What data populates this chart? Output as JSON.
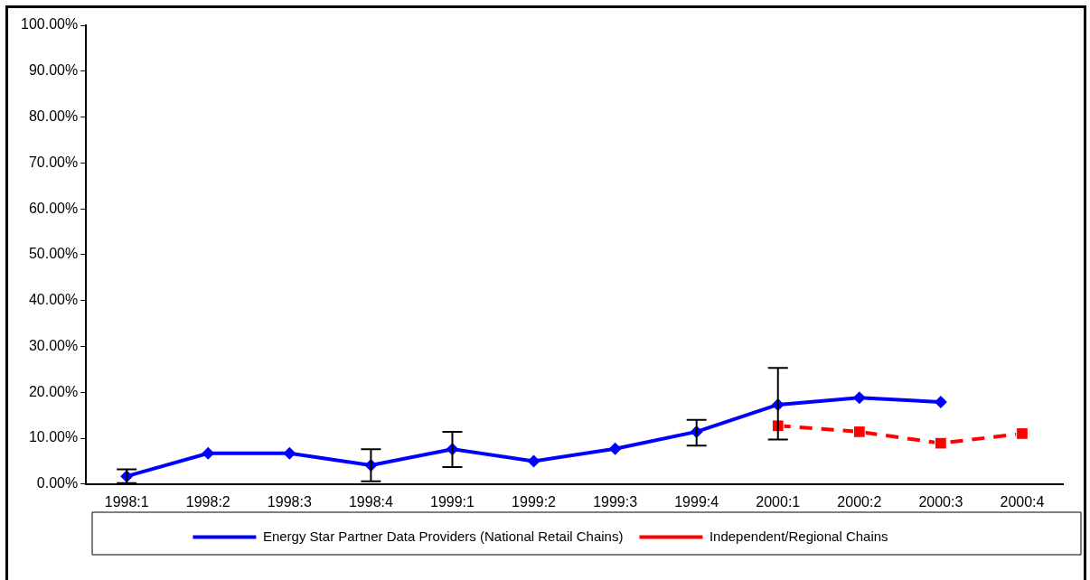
{
  "chart_data": {
    "type": "line",
    "categories": [
      "1998:1",
      "1998:2",
      "1998:3",
      "1998:4",
      "1999:1",
      "1999:2",
      "1999:3",
      "1999:4",
      "2000:1",
      "2000:2",
      "2000:3",
      "2000:4"
    ],
    "series": [
      {
        "name": "Energy Star Partner Data Providers (National Retail Chains)",
        "color": "#0000ff",
        "marker": "diamond",
        "line_style": "solid",
        "values": [
          1.7,
          6.7,
          6.7,
          4.1,
          7.6,
          5.0,
          7.7,
          11.4,
          17.3,
          18.8,
          17.9,
          null
        ],
        "errors": [
          [
            0.2,
            3.2
          ],
          null,
          null,
          [
            0.6,
            7.6
          ],
          [
            3.7,
            11.4
          ],
          null,
          null,
          [
            8.4,
            14.0
          ],
          [
            9.7,
            25.3
          ],
          null,
          null,
          null
        ]
      },
      {
        "name": "Independent/Regional Chains",
        "color": "#ff0000",
        "marker": "square",
        "line_style": "dashed",
        "values": [
          null,
          null,
          null,
          null,
          null,
          null,
          null,
          null,
          12.7,
          11.4,
          8.9,
          11.0
        ]
      }
    ],
    "ylim": [
      0,
      100
    ],
    "yticks": [
      {
        "value": 0,
        "label": "0.00%"
      },
      {
        "value": 10,
        "label": "10.00%"
      },
      {
        "value": 20,
        "label": "20.00%"
      },
      {
        "value": 30,
        "label": "30.00%"
      },
      {
        "value": 40,
        "label": "40.00%"
      },
      {
        "value": 50,
        "label": "50.00%"
      },
      {
        "value": 60,
        "label": "60.00%"
      },
      {
        "value": 70,
        "label": "70.00%"
      },
      {
        "value": 80,
        "label": "80.00%"
      },
      {
        "value": 90,
        "label": "90.00%"
      },
      {
        "value": 100,
        "label": "100.00%"
      }
    ],
    "grid": false,
    "legend": "bottom"
  }
}
